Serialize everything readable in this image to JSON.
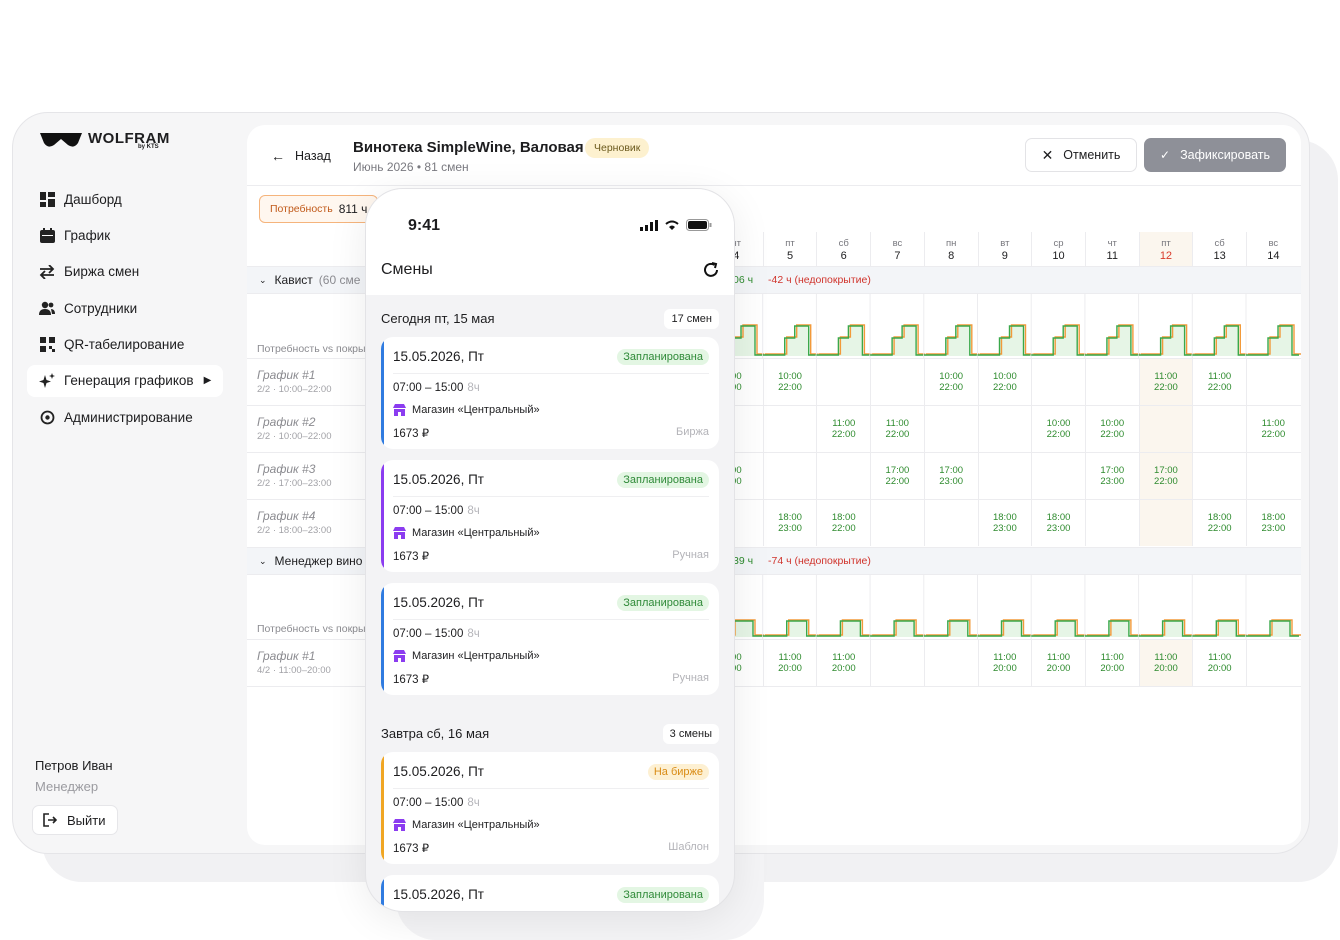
{
  "app": {
    "logo": "WOLFRAM",
    "logo_sub": "by KTS"
  },
  "sidebar": {
    "items": [
      {
        "label": "Дашборд",
        "icon": "dashboard-icon"
      },
      {
        "label": "График",
        "icon": "calendar-icon"
      },
      {
        "label": "Биржа смен",
        "icon": "exchange-icon"
      },
      {
        "label": "Сотрудники",
        "icon": "users-icon"
      },
      {
        "label": "QR-табелирование",
        "icon": "qr-icon"
      },
      {
        "label": "Генерация графиков",
        "icon": "sparkle-icon"
      },
      {
        "label": "Администрирование",
        "icon": "settings-icon"
      }
    ],
    "user_name": "Петров Иван",
    "user_role": "Менеджер",
    "logout_label": "Выйти"
  },
  "header": {
    "back_label": "Назад",
    "title": "Винотека SimpleWine, Валовая",
    "badge": "Черновик",
    "subtitle": "Июнь 2026 • 81 смен",
    "cancel_label": "Отменить",
    "fix_label": "Зафиксировать"
  },
  "summary": {
    "need_label": "Потребность",
    "need_value": "811 ч"
  },
  "days": [
    {
      "dow": "чт",
      "num": "4"
    },
    {
      "dow": "пт",
      "num": "5"
    },
    {
      "dow": "сб",
      "num": "6"
    },
    {
      "dow": "вс",
      "num": "7"
    },
    {
      "dow": "пн",
      "num": "8"
    },
    {
      "dow": "вт",
      "num": "9"
    },
    {
      "dow": "ср",
      "num": "10"
    },
    {
      "dow": "чт",
      "num": "11"
    },
    {
      "dow": "пт",
      "num": "12"
    },
    {
      "dow": "сб",
      "num": "13"
    },
    {
      "dow": "вс",
      "num": "14"
    }
  ],
  "groups": [
    {
      "name": "Кавист",
      "cap": "(60 сме",
      "left": "06 ч",
      "deficit": "-42 ч (недопокрытие)"
    },
    {
      "name": "Менеджер вино",
      "cap": "",
      "left": "39 ч",
      "deficit": "-74 ч (недопокрытие)"
    }
  ],
  "need_vs_cover": "Потребность vs покры",
  "schedules": [
    {
      "name": "График #1",
      "meta": "2/2 · 10:00–22:00",
      "cells": [
        "00|00",
        "10:00|22:00",
        "",
        "",
        "10:00|22:00",
        "10:00|22:00",
        "",
        "",
        "11:00|22:00",
        "11:00|22:00",
        ""
      ]
    },
    {
      "name": "График #2",
      "meta": "2/2 · 10:00–22:00",
      "cells": [
        "",
        "",
        "11:00|22:00",
        "11:00|22:00",
        "",
        "",
        "10:00|22:00",
        "10:00|22:00",
        "",
        "",
        "11:00|22:00"
      ]
    },
    {
      "name": "График #3",
      "meta": "2/2 · 17:00–23:00",
      "cells": [
        "00|00",
        "",
        "",
        "17:00|22:00",
        "17:00|23:00",
        "",
        "",
        "17:00|23:00",
        "17:00|22:00",
        "",
        ""
      ]
    },
    {
      "name": "График #4",
      "meta": "2/2 · 18:00–23:00",
      "cells": [
        "",
        "18:00|23:00",
        "18:00|22:00",
        "",
        "",
        "18:00|23:00",
        "18:00|23:00",
        "",
        "",
        "18:00|22:00",
        "18:00|23:00"
      ]
    },
    {
      "name": "График #1",
      "meta": "4/2 · 11:00–20:00",
      "cells": [
        "00|00",
        "11:00|20:00",
        "11:00|20:00",
        "",
        "",
        "11:00|20:00",
        "11:00|20:00",
        "11:00|20:00",
        "11:00|20:00",
        "11:00|20:00",
        ""
      ]
    }
  ],
  "phone": {
    "time": "9:41",
    "title": "Смены",
    "sections": [
      {
        "header": "Сегодня пт, 15 мая",
        "count": "17 смен"
      },
      {
        "header": "Завтра сб, 16 мая",
        "count": "3 смены"
      }
    ],
    "cards": [
      {
        "date": "15.05.2026, Пт",
        "status": "Запланирована",
        "time": "07:00 – 15:00",
        "hours": "8ч",
        "shop": "Магазин «Центральный»",
        "price": "1673 ₽",
        "source": "Биржа",
        "color": "#2f7be0"
      },
      {
        "date": "15.05.2026, Пт",
        "status": "Запланирована",
        "time": "07:00 – 15:00",
        "hours": "8ч",
        "shop": "Магазин «Центральный»",
        "price": "1673 ₽",
        "source": "Ручная",
        "color": "#8b3cf0"
      },
      {
        "date": "15.05.2026, Пт",
        "status": "Запланирована",
        "time": "07:00 – 15:00",
        "hours": "8ч",
        "shop": "Магазин «Центральный»",
        "price": "1673 ₽",
        "source": "Ручная",
        "color": "#2f7be0"
      },
      {
        "date": "15.05.2026, Пт",
        "status": "На бирже",
        "time": "07:00 – 15:00",
        "hours": "8ч",
        "shop": "Магазин «Центральный»",
        "price": "1673 ₽",
        "source": "Шаблон",
        "color": "#f0a623"
      },
      {
        "date": "15.05.2026, Пт",
        "status": "Запланирована",
        "color": "#2f7be0"
      }
    ]
  }
}
